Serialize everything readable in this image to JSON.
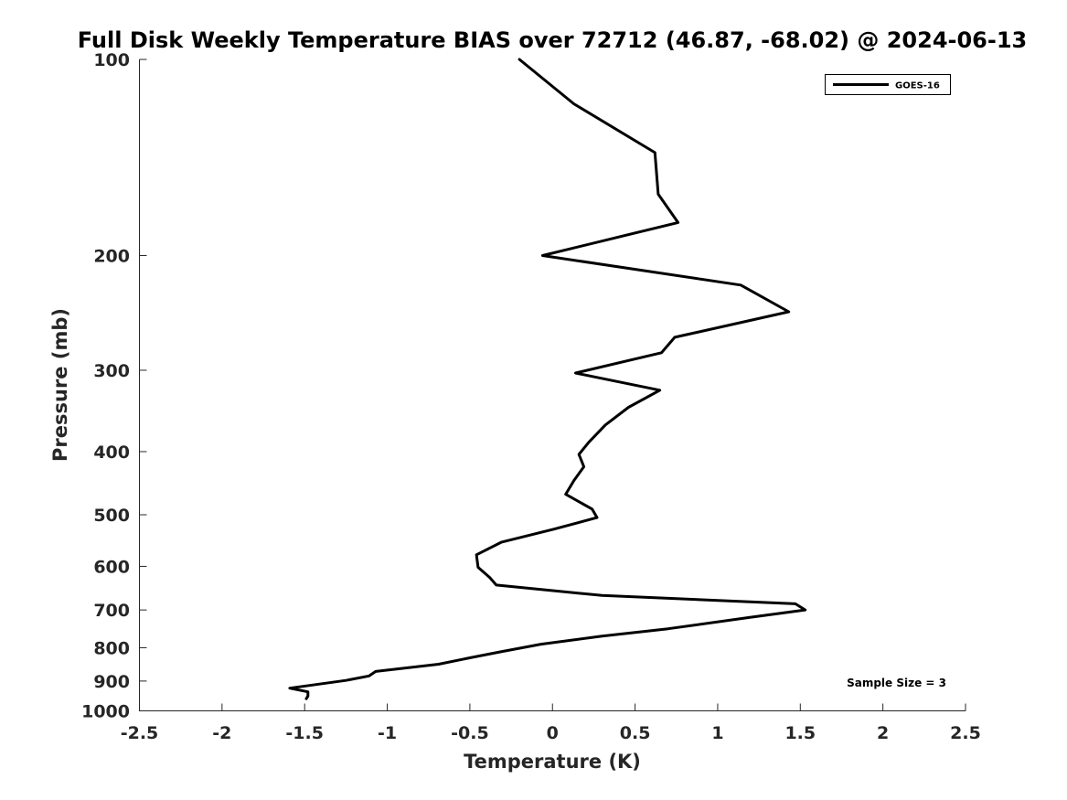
{
  "chart_data": {
    "type": "line",
    "title": "Full Disk Weekly Temperature BIAS over 72712 (46.87, -68.02) @ 2024-06-13",
    "xlabel": "Temperature (K)",
    "ylabel": "Pressure (mb)",
    "xlim": [
      -2.5,
      2.5
    ],
    "ylim": [
      100,
      1000
    ],
    "y_scale": "log",
    "y_reversed": true,
    "grid": false,
    "legend_position": "top-right",
    "x_ticks": [
      -2.5,
      -2,
      -1.5,
      -1,
      -0.5,
      0,
      0.5,
      1,
      1.5,
      2,
      2.5
    ],
    "x_tick_labels": [
      "-2.5",
      "-2",
      "-1.5",
      "-1",
      "-0.5",
      "0",
      "0.5",
      "1",
      "1.5",
      "2",
      "2.5"
    ],
    "y_ticks": [
      100,
      200,
      300,
      400,
      500,
      600,
      700,
      800,
      900,
      1000
    ],
    "y_tick_labels": [
      "100",
      "200",
      "300",
      "400",
      "500",
      "600",
      "700",
      "800",
      "900",
      "1000"
    ],
    "series": [
      {
        "name": "GOES-16",
        "color": "#000000",
        "points": [
          {
            "x": -0.2,
            "y": 100
          },
          {
            "x": 0.13,
            "y": 117
          },
          {
            "x": 0.62,
            "y": 139
          },
          {
            "x": 0.64,
            "y": 161
          },
          {
            "x": 0.76,
            "y": 178
          },
          {
            "x": -0.06,
            "y": 200
          },
          {
            "x": 1.14,
            "y": 222
          },
          {
            "x": 1.43,
            "y": 244
          },
          {
            "x": 0.74,
            "y": 267
          },
          {
            "x": 0.66,
            "y": 282
          },
          {
            "x": 0.14,
            "y": 303
          },
          {
            "x": 0.65,
            "y": 322
          },
          {
            "x": 0.46,
            "y": 342
          },
          {
            "x": 0.32,
            "y": 364
          },
          {
            "x": 0.22,
            "y": 387
          },
          {
            "x": 0.16,
            "y": 404
          },
          {
            "x": 0.19,
            "y": 422
          },
          {
            "x": 0.13,
            "y": 443
          },
          {
            "x": 0.08,
            "y": 465
          },
          {
            "x": 0.24,
            "y": 490
          },
          {
            "x": 0.27,
            "y": 505
          },
          {
            "x": 0.01,
            "y": 526
          },
          {
            "x": -0.31,
            "y": 551
          },
          {
            "x": -0.46,
            "y": 576
          },
          {
            "x": -0.45,
            "y": 602
          },
          {
            "x": -0.38,
            "y": 624
          },
          {
            "x": -0.34,
            "y": 641
          },
          {
            "x": 0.3,
            "y": 665
          },
          {
            "x": 1.47,
            "y": 685
          },
          {
            "x": 1.53,
            "y": 700
          },
          {
            "x": 1.19,
            "y": 719
          },
          {
            "x": 0.7,
            "y": 748
          },
          {
            "x": 0.3,
            "y": 768
          },
          {
            "x": -0.07,
            "y": 790
          },
          {
            "x": -0.32,
            "y": 812
          },
          {
            "x": -0.49,
            "y": 828
          },
          {
            "x": -0.69,
            "y": 848
          },
          {
            "x": -1.07,
            "y": 870
          },
          {
            "x": -1.11,
            "y": 884
          },
          {
            "x": -1.25,
            "y": 898
          },
          {
            "x": -1.59,
            "y": 923
          },
          {
            "x": -1.48,
            "y": 935
          },
          {
            "x": -1.48,
            "y": 949
          },
          {
            "x": -1.49,
            "y": 958
          }
        ]
      }
    ],
    "annotations": [
      {
        "text": "Sample Size = 3",
        "position": "bottom-right"
      }
    ]
  }
}
